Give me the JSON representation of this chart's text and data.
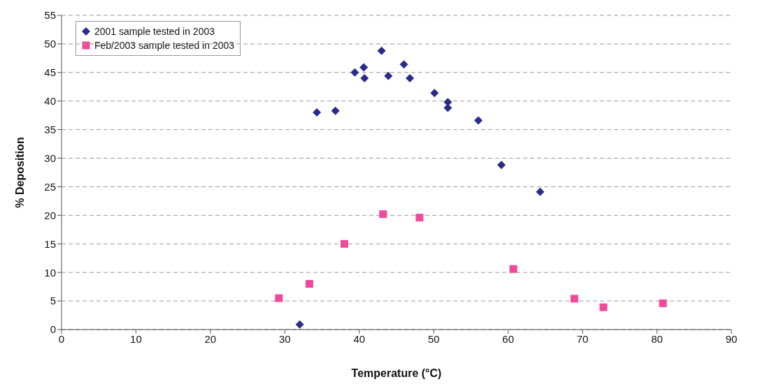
{
  "chart_data": {
    "type": "scatter",
    "xlabel": "Temperature (°C)",
    "ylabel": "% Deposition",
    "xlim": [
      0,
      90
    ],
    "xticks": [
      0,
      10,
      20,
      30,
      40,
      50,
      60,
      70,
      80,
      90
    ],
    "ylim": [
      0,
      55
    ],
    "yticks": [
      0,
      5,
      10,
      15,
      20,
      25,
      30,
      35,
      40,
      45,
      50,
      55
    ],
    "grid": "y",
    "legend": "top left",
    "series": [
      {
        "name": "2001 sample tested in 2003",
        "color": "#2b2b8c",
        "marker": "diamond",
        "x": [
          32.0,
          34.3,
          36.8,
          39.4,
          40.6,
          40.7,
          43.0,
          43.9,
          46.0,
          46.8,
          50.1,
          51.9,
          51.9,
          56.0,
          59.1,
          64.3
        ],
        "values": [
          0.9,
          38.0,
          38.3,
          45.0,
          45.9,
          44.0,
          48.8,
          44.4,
          46.4,
          44.0,
          41.4,
          39.8,
          38.8,
          36.6,
          28.8,
          24.1
        ]
      },
      {
        "name": "Feb/2003 sample tested in 2003",
        "color": "#f0489a",
        "marker": "square",
        "x": [
          29.2,
          33.3,
          38.0,
          43.2,
          48.1,
          60.7,
          68.9,
          72.8,
          80.8
        ],
        "values": [
          5.5,
          8.0,
          15.0,
          20.2,
          19.6,
          10.6,
          5.4,
          3.9,
          4.6
        ]
      }
    ]
  }
}
